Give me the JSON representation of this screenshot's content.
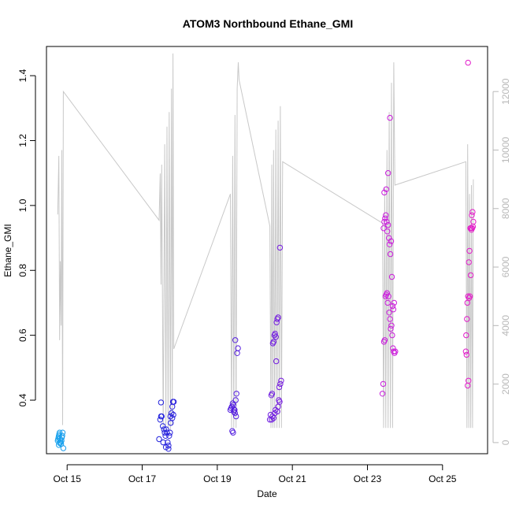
{
  "chart_data": {
    "type": "scatter",
    "title": "ATOM3 Northbound Ethane_GMI",
    "xlabel": "Date",
    "ylabel": "Ethane_GMI",
    "x_ticks": [
      "Oct 15",
      "Oct 17",
      "Oct 19",
      "Oct 21",
      "Oct 23",
      "Oct 25"
    ],
    "x_tick_days": [
      15,
      17,
      19,
      21,
      23,
      25
    ],
    "xlim": [
      14.45,
      26.2
    ],
    "ylim": [
      0.235,
      1.49
    ],
    "y_ticks": [
      0.4,
      0.6,
      0.8,
      1.0,
      1.2,
      1.4
    ],
    "y_tick_labels": [
      "0.4",
      "0.6",
      "0.8",
      "1.0",
      "1.2",
      "1.4"
    ],
    "y2_ticks": [
      0,
      2000,
      4000,
      6000,
      8000,
      10000,
      12000
    ],
    "y2_tick_labels": [
      "0",
      "2000",
      "4000",
      "6000",
      "8000",
      "10000",
      "12000"
    ],
    "y2_range_for_ylim": [
      -380,
      13540
    ],
    "colors": {
      "line": "#c8c8c8",
      "point_gradient": [
        "#1aa7ee",
        "#2222dd",
        "#6a1ce0",
        "#c51ce0",
        "#e51cc8"
      ]
    },
    "altitude_line": [
      [
        14.75,
        7800
      ],
      [
        14.78,
        9800
      ],
      [
        14.8,
        3500
      ],
      [
        14.82,
        6200
      ],
      [
        14.84,
        4000
      ],
      [
        14.86,
        10000
      ],
      [
        14.88,
        600
      ],
      [
        14.9,
        12000
      ],
      [
        17.45,
        7600
      ],
      [
        17.48,
        9200
      ],
      [
        17.5,
        5400
      ],
      [
        17.52,
        9500
      ],
      [
        17.56,
        400
      ],
      [
        17.6,
        10200
      ],
      [
        17.63,
        600
      ],
      [
        17.66,
        10800
      ],
      [
        17.69,
        500
      ],
      [
        17.72,
        11300
      ],
      [
        17.75,
        400
      ],
      [
        17.78,
        12100
      ],
      [
        17.8,
        600
      ],
      [
        17.82,
        13300
      ],
      [
        17.84,
        3200
      ],
      [
        19.35,
        8500
      ],
      [
        19.38,
        500
      ],
      [
        19.41,
        9800
      ],
      [
        19.44,
        500
      ],
      [
        19.47,
        11200
      ],
      [
        19.5,
        500
      ],
      [
        19.53,
        12100
      ],
      [
        19.56,
        13000
      ],
      [
        19.58,
        12400
      ],
      [
        20.4,
        7400
      ],
      [
        20.43,
        500
      ],
      [
        20.45,
        9500
      ],
      [
        20.48,
        500
      ],
      [
        20.5,
        10000
      ],
      [
        20.53,
        500
      ],
      [
        20.56,
        10700
      ],
      [
        20.59,
        500
      ],
      [
        20.62,
        11000
      ],
      [
        20.65,
        500
      ],
      [
        20.68,
        11500
      ],
      [
        20.71,
        500
      ],
      [
        20.74,
        9600
      ],
      [
        23.4,
        7500
      ],
      [
        23.43,
        500
      ],
      [
        23.46,
        8700
      ],
      [
        23.49,
        500
      ],
      [
        23.52,
        10000
      ],
      [
        23.55,
        500
      ],
      [
        23.58,
        11300
      ],
      [
        23.61,
        500
      ],
      [
        23.64,
        12300
      ],
      [
        23.67,
        500
      ],
      [
        23.7,
        13000
      ],
      [
        23.73,
        8800
      ],
      [
        25.62,
        9600
      ],
      [
        25.65,
        500
      ],
      [
        25.67,
        10200
      ],
      [
        25.7,
        500
      ],
      [
        25.72,
        8500
      ],
      [
        25.75,
        500
      ],
      [
        25.77,
        8800
      ],
      [
        25.8,
        500
      ],
      [
        25.82,
        9000
      ]
    ],
    "series": [
      {
        "x": [
          14.75,
          14.76,
          14.77,
          14.78,
          14.79,
          14.8,
          14.81,
          14.82,
          14.83,
          14.84,
          14.85,
          14.86,
          14.87,
          14.88,
          14.9,
          14.78,
          14.8
        ],
        "y": [
          0.275,
          0.28,
          0.285,
          0.29,
          0.295,
          0.3,
          0.282,
          0.276,
          0.27,
          0.265,
          0.275,
          0.285,
          0.29,
          0.3,
          0.252,
          0.262,
          0.268
        ]
      },
      {
        "x": [
          17.45,
          17.48,
          17.5,
          17.52,
          17.55,
          17.58,
          17.6,
          17.62,
          17.64,
          17.66,
          17.68,
          17.7,
          17.72,
          17.74,
          17.76,
          17.78,
          17.8,
          17.82,
          17.84,
          17.5,
          17.56,
          17.63,
          17.7,
          17.75,
          17.8,
          17.83
        ],
        "y": [
          0.28,
          0.34,
          0.35,
          0.35,
          0.32,
          0.31,
          0.3,
          0.29,
          0.31,
          0.3,
          0.27,
          0.26,
          0.29,
          0.3,
          0.33,
          0.36,
          0.38,
          0.395,
          0.395,
          0.393,
          0.27,
          0.255,
          0.25,
          0.35,
          0.345,
          0.355
        ]
      },
      {
        "x": [
          19.35,
          19.37,
          19.39,
          19.41,
          19.43,
          19.45,
          19.47,
          19.49,
          19.51,
          19.53,
          19.55,
          19.4,
          19.42,
          19.44,
          19.46,
          19.48,
          19.5
        ],
        "y": [
          0.37,
          0.375,
          0.38,
          0.39,
          0.385,
          0.37,
          0.36,
          0.4,
          0.42,
          0.545,
          0.56,
          0.305,
          0.3,
          0.365,
          0.37,
          0.585,
          0.35
        ]
      },
      {
        "x": [
          20.4,
          20.42,
          20.44,
          20.46,
          20.48,
          20.5,
          20.52,
          20.54,
          20.56,
          20.58,
          20.6,
          20.62,
          20.64,
          20.66,
          20.68,
          20.7,
          20.45,
          20.47,
          20.5,
          20.53,
          20.55,
          20.57,
          20.6,
          20.62,
          20.65,
          20.67
        ],
        "y": [
          0.34,
          0.355,
          0.415,
          0.42,
          0.575,
          0.58,
          0.6,
          0.605,
          0.595,
          0.64,
          0.65,
          0.655,
          0.4,
          0.395,
          0.45,
          0.46,
          0.34,
          0.35,
          0.345,
          0.36,
          0.37,
          0.52,
          0.365,
          0.38,
          0.44,
          0.87
        ]
      },
      {
        "x": [
          23.4,
          23.42,
          23.44,
          23.46,
          23.48,
          23.5,
          23.52,
          23.54,
          23.56,
          23.58,
          23.6,
          23.62,
          23.64,
          23.66,
          23.68,
          23.7,
          23.72,
          23.74,
          23.43,
          23.45,
          23.47,
          23.49,
          23.51,
          23.53,
          23.55,
          23.57,
          23.59,
          23.61,
          23.63,
          23.65,
          23.67,
          23.69,
          23.71,
          23.45,
          23.5,
          23.55,
          23.6
        ],
        "y": [
          0.42,
          0.45,
          0.58,
          0.585,
          0.72,
          0.725,
          0.73,
          0.7,
          0.72,
          0.67,
          0.65,
          0.62,
          0.63,
          0.6,
          0.56,
          0.55,
          0.545,
          0.55,
          0.93,
          0.95,
          0.96,
          0.97,
          0.95,
          0.92,
          0.94,
          0.9,
          0.88,
          0.85,
          0.89,
          0.78,
          0.69,
          0.68,
          0.7,
          1.04,
          1.05,
          1.1,
          1.27
        ]
      },
      {
        "x": [
          25.62,
          25.64,
          25.66,
          25.68,
          25.7,
          25.72,
          25.74,
          25.76,
          25.78,
          25.8,
          25.82,
          25.63,
          25.65,
          25.67,
          25.69,
          25.71,
          25.73,
          25.75,
          25.77,
          25.79,
          25.81,
          25.68
        ],
        "y": [
          0.55,
          0.54,
          0.7,
          0.72,
          0.825,
          0.86,
          0.93,
          0.93,
          0.97,
          0.98,
          0.95,
          0.6,
          0.65,
          0.445,
          0.46,
          0.715,
          0.72,
          0.785,
          0.925,
          0.93,
          0.935,
          1.44
        ]
      }
    ]
  }
}
